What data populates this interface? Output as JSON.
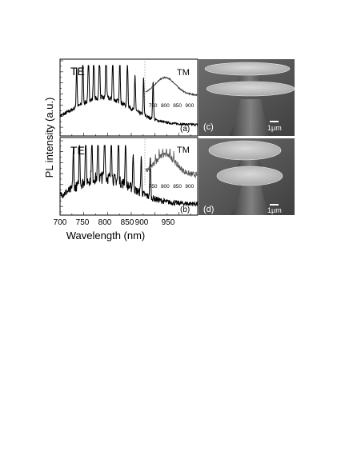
{
  "figure": {
    "ylabel": "PL intensity (a.u.)",
    "xlabel": "Wavelength (nm)",
    "x_ticks": [
      "700",
      "750",
      "800",
      "850",
      "900",
      "950"
    ]
  },
  "chart_data": [
    {
      "type": "line",
      "panel_label": "(a)",
      "polarization_label": "TE",
      "xlabel": "Wavelength (nm)",
      "ylabel": "PL intensity (a.u.)",
      "xlim": [
        700,
        990
      ],
      "grid": false,
      "peaks_nm": [
        735,
        748,
        760,
        771,
        783,
        797,
        811,
        826,
        842,
        858,
        876,
        896
      ],
      "inset": {
        "label": "TM",
        "x_ticks": [
          "750",
          "800",
          "850",
          "900"
        ],
        "xlim": [
          720,
          930
        ],
        "shape": "broad band centered near 800 nm"
      }
    },
    {
      "type": "line",
      "panel_label": "(b)",
      "polarization_label": "TE",
      "xlabel": "Wavelength (nm)",
      "ylabel": "PL intensity (a.u.)",
      "xlim": [
        700,
        990
      ],
      "grid": false,
      "peaks_nm": [
        728,
        741,
        754,
        767,
        780,
        794,
        808,
        823,
        838,
        854,
        871,
        890
      ],
      "inset": {
        "label": "TM",
        "x_ticks": [
          "750",
          "800",
          "850",
          "900"
        ],
        "xlim": [
          720,
          930
        ],
        "shape": "broad noisy band centered near 790 nm"
      }
    }
  ],
  "images": [
    {
      "panel_label": "(c)",
      "scale_bar": "1μm",
      "description_icon": "sem-double-disk-icon"
    },
    {
      "panel_label": "(d)",
      "scale_bar": "1μm",
      "description_icon": "sem-double-disk-icon"
    }
  ]
}
